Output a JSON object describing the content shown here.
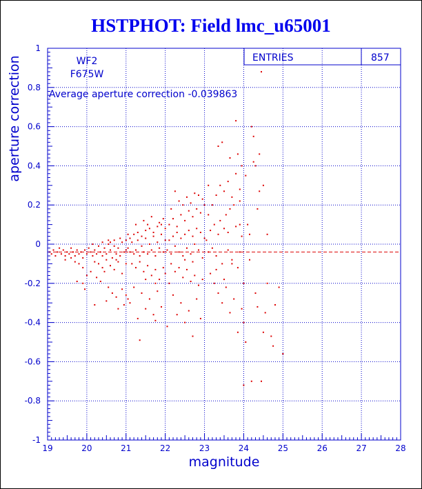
{
  "title": "HSTPHOT: Field lmc_u65001",
  "colors": {
    "axis": "#0000cc",
    "grid": "#0000cc",
    "points": "#dd0000",
    "title": "#0000ee"
  },
  "stats": {
    "entries_label": "ENTRIES",
    "entries_value": "857"
  },
  "labels": {
    "chip": "WF2",
    "filter": "F675W",
    "average": "Average aperture correction -0.039863"
  },
  "chart_data": {
    "type": "scatter",
    "title": "HSTPHOT: Field lmc_u65001",
    "xlabel": "magnitude",
    "ylabel": "aperture correction",
    "xlim": [
      19,
      28
    ],
    "ylim": [
      -1,
      1
    ],
    "xticks": [
      19,
      20,
      21,
      22,
      23,
      24,
      25,
      26,
      27,
      28
    ],
    "yticks": [
      -1,
      -0.8,
      -0.6,
      -0.4,
      -0.2,
      0,
      0.2,
      0.4,
      0.6,
      0.8,
      1
    ],
    "xtick_labels": [
      "19",
      "20",
      "21",
      "22",
      "23",
      "24",
      "25",
      "26",
      "27",
      "28"
    ],
    "ytick_labels": [
      "-1",
      "-0.8",
      "-0.6",
      "-0.4",
      "-0.2",
      "0",
      "0.2",
      "0.4",
      "0.6",
      "0.8",
      "1"
    ],
    "grid": true,
    "reference_line": {
      "y": -0.039863,
      "style": "dashed",
      "color": "#dd0000"
    },
    "series": [
      {
        "color": "#dd0000",
        "points": [
          [
            19.05,
            -0.04
          ],
          [
            19.1,
            -0.05
          ],
          [
            19.15,
            -0.03
          ],
          [
            19.2,
            -0.06
          ],
          [
            19.25,
            -0.04
          ],
          [
            19.3,
            -0.02
          ],
          [
            19.35,
            -0.05
          ],
          [
            19.4,
            -0.03
          ],
          [
            19.45,
            -0.06
          ],
          [
            19.5,
            -0.04
          ],
          [
            19.55,
            -0.05
          ],
          [
            19.6,
            -0.02
          ],
          [
            19.65,
            -0.04
          ],
          [
            19.7,
            -0.06
          ],
          [
            19.75,
            -0.03
          ],
          [
            19.8,
            -0.05
          ],
          [
            19.85,
            -0.04
          ],
          [
            19.9,
            -0.07
          ],
          [
            19.95,
            -0.03
          ],
          [
            20.0,
            -0.05
          ],
          [
            19.45,
            -0.08
          ],
          [
            19.6,
            -0.07
          ],
          [
            19.7,
            -0.09
          ],
          [
            19.8,
            -0.1
          ],
          [
            19.9,
            -0.12
          ],
          [
            19.75,
            -0.19
          ],
          [
            19.9,
            -0.2
          ],
          [
            19.95,
            -0.23
          ],
          [
            20.0,
            -0.16
          ],
          [
            20.1,
            -0.14
          ],
          [
            20.05,
            -0.02
          ],
          [
            20.1,
            -0.04
          ],
          [
            20.15,
            -0.06
          ],
          [
            20.2,
            -0.03
          ],
          [
            20.25,
            -0.05
          ],
          [
            20.3,
            -0.01
          ],
          [
            20.35,
            -0.04
          ],
          [
            20.4,
            -0.06
          ],
          [
            20.45,
            -0.02
          ],
          [
            20.5,
            -0.05
          ],
          [
            20.55,
            0.0
          ],
          [
            20.6,
            -0.03
          ],
          [
            20.65,
            -0.07
          ],
          [
            20.7,
            -0.01
          ],
          [
            20.75,
            -0.05
          ],
          [
            20.8,
            -0.02
          ],
          [
            20.85,
            -0.06
          ],
          [
            20.9,
            0.01
          ],
          [
            20.95,
            -0.04
          ],
          [
            21.0,
            -0.03
          ],
          [
            20.2,
            -0.09
          ],
          [
            20.3,
            -0.1
          ],
          [
            20.4,
            -0.12
          ],
          [
            20.5,
            -0.08
          ],
          [
            20.6,
            -0.11
          ],
          [
            20.7,
            -0.13
          ],
          [
            20.8,
            -0.09
          ],
          [
            20.9,
            -0.15
          ],
          [
            21.0,
            -0.1
          ],
          [
            20.35,
            -0.19
          ],
          [
            20.55,
            -0.22
          ],
          [
            20.65,
            -0.25
          ],
          [
            20.75,
            -0.27
          ],
          [
            20.9,
            -0.23
          ],
          [
            21.0,
            -0.26
          ],
          [
            20.2,
            -0.31
          ],
          [
            20.5,
            -0.29
          ],
          [
            20.8,
            -0.33
          ],
          [
            20.95,
            -0.31
          ],
          [
            21.05,
            -0.28
          ],
          [
            20.6,
            0.01
          ],
          [
            20.7,
            0.02
          ],
          [
            20.85,
            0.03
          ],
          [
            21.0,
            0.02
          ],
          [
            20.4,
            0.01
          ],
          [
            20.15,
            0.0
          ],
          [
            20.55,
            0.02
          ],
          [
            20.75,
            -0.08
          ],
          [
            20.45,
            -0.14
          ],
          [
            20.25,
            -0.17
          ],
          [
            21.05,
            -0.02
          ],
          [
            21.1,
            -0.04
          ],
          [
            21.15,
            0.01
          ],
          [
            21.2,
            -0.05
          ],
          [
            21.25,
            -0.03
          ],
          [
            21.3,
            0.02
          ],
          [
            21.35,
            -0.06
          ],
          [
            21.4,
            -0.01
          ],
          [
            21.45,
            -0.04
          ],
          [
            21.5,
            0.03
          ],
          [
            21.55,
            -0.05
          ],
          [
            21.6,
            0.0
          ],
          [
            21.65,
            -0.03
          ],
          [
            21.7,
            0.04
          ],
          [
            21.75,
            -0.06
          ],
          [
            21.8,
            0.01
          ],
          [
            21.85,
            -0.02
          ],
          [
            21.9,
            0.05
          ],
          [
            21.95,
            -0.04
          ],
          [
            22.0,
            0.02
          ],
          [
            21.1,
            0.03
          ],
          [
            21.2,
            0.05
          ],
          [
            21.3,
            0.06
          ],
          [
            21.4,
            0.04
          ],
          [
            21.5,
            0.07
          ],
          [
            21.6,
            0.08
          ],
          [
            21.7,
            0.06
          ],
          [
            21.8,
            0.09
          ],
          [
            21.9,
            0.1
          ],
          [
            22.0,
            0.08
          ],
          [
            21.15,
            -0.1
          ],
          [
            21.25,
            -0.12
          ],
          [
            21.35,
            -0.09
          ],
          [
            21.45,
            -0.14
          ],
          [
            21.55,
            -0.11
          ],
          [
            21.65,
            -0.16
          ],
          [
            21.75,
            -0.13
          ],
          [
            21.85,
            -0.18
          ],
          [
            21.95,
            -0.12
          ],
          [
            22.0,
            -0.15
          ],
          [
            21.2,
            -0.22
          ],
          [
            21.4,
            -0.25
          ],
          [
            21.6,
            -0.28
          ],
          [
            21.8,
            -0.24
          ],
          [
            21.1,
            -0.3
          ],
          [
            21.5,
            -0.33
          ],
          [
            21.7,
            -0.36
          ],
          [
            21.9,
            -0.32
          ],
          [
            21.3,
            -0.38
          ],
          [
            21.75,
            -0.39
          ],
          [
            21.35,
            -0.49
          ],
          [
            21.45,
            0.12
          ],
          [
            21.65,
            0.14
          ],
          [
            21.85,
            0.11
          ],
          [
            21.55,
            0.1
          ],
          [
            21.95,
            0.13
          ],
          [
            21.25,
            0.1
          ],
          [
            21.05,
            0.05
          ],
          [
            21.75,
            -0.2
          ],
          [
            21.5,
            -0.18
          ],
          [
            22.05,
            -0.03
          ],
          [
            22.1,
            0.02
          ],
          [
            22.15,
            -0.05
          ],
          [
            22.2,
            0.04
          ],
          [
            22.25,
            -0.01
          ],
          [
            22.3,
            0.06
          ],
          [
            22.35,
            -0.04
          ],
          [
            22.4,
            0.03
          ],
          [
            22.45,
            -0.06
          ],
          [
            22.5,
            0.05
          ],
          [
            22.55,
            -0.02
          ],
          [
            22.6,
            0.07
          ],
          [
            22.65,
            -0.05
          ],
          [
            22.7,
            0.04
          ],
          [
            22.75,
            0.0
          ],
          [
            22.8,
            0.08
          ],
          [
            22.85,
            -0.03
          ],
          [
            22.9,
            0.06
          ],
          [
            22.95,
            -0.07
          ],
          [
            23.0,
            0.03
          ],
          [
            22.1,
            0.1
          ],
          [
            22.2,
            0.13
          ],
          [
            22.3,
            0.09
          ],
          [
            22.4,
            0.15
          ],
          [
            22.5,
            0.12
          ],
          [
            22.6,
            0.17
          ],
          [
            22.7,
            0.14
          ],
          [
            22.8,
            0.18
          ],
          [
            22.9,
            0.16
          ],
          [
            23.0,
            0.2
          ],
          [
            22.15,
            -0.1
          ],
          [
            22.25,
            -0.14
          ],
          [
            22.35,
            -0.12
          ],
          [
            22.45,
            -0.17
          ],
          [
            22.55,
            -0.13
          ],
          [
            22.65,
            -0.19
          ],
          [
            22.75,
            -0.16
          ],
          [
            22.85,
            -0.21
          ],
          [
            22.95,
            -0.18
          ],
          [
            22.1,
            -0.2
          ],
          [
            22.2,
            -0.26
          ],
          [
            22.4,
            -0.3
          ],
          [
            22.6,
            -0.34
          ],
          [
            22.8,
            -0.28
          ],
          [
            22.3,
            -0.36
          ],
          [
            22.5,
            -0.4
          ],
          [
            22.7,
            -0.47
          ],
          [
            22.9,
            -0.38
          ],
          [
            22.05,
            -0.42
          ],
          [
            22.25,
            0.27
          ],
          [
            22.35,
            0.22
          ],
          [
            22.55,
            0.24
          ],
          [
            22.75,
            0.26
          ],
          [
            22.95,
            0.23
          ],
          [
            22.45,
            0.2
          ],
          [
            22.65,
            0.21
          ],
          [
            22.85,
            0.25
          ],
          [
            22.15,
            0.18
          ],
          [
            22.5,
            -0.08
          ],
          [
            22.7,
            -0.09
          ],
          [
            23.05,
            0.02
          ],
          [
            23.1,
            -0.04
          ],
          [
            23.15,
            0.07
          ],
          [
            23.2,
            -0.02
          ],
          [
            23.25,
            0.1
          ],
          [
            23.3,
            -0.06
          ],
          [
            23.35,
            0.05
          ],
          [
            23.4,
            0.12
          ],
          [
            23.45,
            -0.1
          ],
          [
            23.5,
            0.08
          ],
          [
            23.55,
            0.15
          ],
          [
            23.6,
            -0.03
          ],
          [
            23.65,
            0.18
          ],
          [
            23.7,
            -0.08
          ],
          [
            23.75,
            0.2
          ],
          [
            23.8,
            0.09
          ],
          [
            23.85,
            -0.12
          ],
          [
            23.9,
            0.22
          ],
          [
            23.95,
            0.04
          ],
          [
            23.1,
            0.15
          ],
          [
            23.2,
            0.2
          ],
          [
            23.3,
            0.25
          ],
          [
            23.4,
            0.3
          ],
          [
            23.5,
            0.27
          ],
          [
            23.6,
            0.32
          ],
          [
            23.7,
            0.24
          ],
          [
            23.8,
            0.36
          ],
          [
            23.9,
            0.28
          ],
          [
            23.35,
            0.5
          ],
          [
            23.65,
            0.44
          ],
          [
            23.85,
            0.46
          ],
          [
            23.15,
            -0.15
          ],
          [
            23.25,
            -0.2
          ],
          [
            23.35,
            -0.25
          ],
          [
            23.45,
            -0.3
          ],
          [
            23.55,
            -0.22
          ],
          [
            23.65,
            -0.35
          ],
          [
            23.75,
            -0.28
          ],
          [
            23.85,
            -0.45
          ],
          [
            23.95,
            -0.33
          ],
          [
            23.45,
            0.52
          ],
          [
            23.8,
            0.63
          ],
          [
            23.95,
            0.4
          ],
          [
            23.9,
            0.1
          ],
          [
            23.6,
            0.06
          ],
          [
            23.3,
            -0.13
          ],
          [
            23.5,
            -0.18
          ],
          [
            23.7,
            -0.1
          ],
          [
            23.1,
            0.3
          ],
          [
            23.9,
            -0.04
          ],
          [
            24.0,
            -0.2
          ],
          [
            24.0,
            -0.4
          ],
          [
            24.0,
            -0.72
          ],
          [
            24.05,
            0.35
          ],
          [
            24.1,
            0.1
          ],
          [
            24.15,
            0.05
          ],
          [
            24.2,
            0.6
          ],
          [
            24.25,
            0.42
          ],
          [
            24.3,
            -0.25
          ],
          [
            24.35,
            -0.32
          ],
          [
            24.4,
            0.46
          ],
          [
            24.45,
            0.88
          ],
          [
            24.3,
            0.4
          ],
          [
            24.4,
            0.27
          ],
          [
            24.5,
            0.3
          ],
          [
            24.2,
            -0.7
          ],
          [
            24.45,
            -0.7
          ],
          [
            24.5,
            -0.45
          ],
          [
            24.6,
            -0.2
          ],
          [
            24.7,
            -0.47
          ],
          [
            24.75,
            -0.52
          ],
          [
            24.8,
            -0.31
          ],
          [
            24.9,
            -0.22
          ],
          [
            25.0,
            -0.56
          ],
          [
            24.6,
            0.05
          ],
          [
            24.25,
            0.55
          ],
          [
            24.15,
            -0.08
          ],
          [
            24.05,
            -0.5
          ],
          [
            24.35,
            0.18
          ],
          [
            24.55,
            -0.35
          ]
        ]
      }
    ]
  }
}
